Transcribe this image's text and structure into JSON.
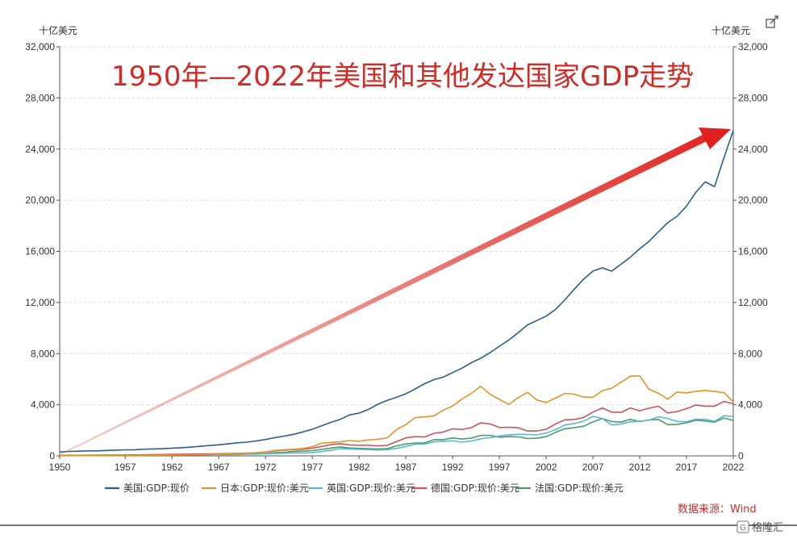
{
  "chart_data": {
    "type": "line",
    "title": "1950年—2022年美国和其他发达国家GDP走势",
    "ylabel_left": "十亿美元",
    "ylabel_right": "十亿美元",
    "xlim": [
      1950,
      2022
    ],
    "ylim": [
      0,
      32000
    ],
    "x_ticks": [
      "1950",
      "1957",
      "1962",
      "1967",
      "1972",
      "1977",
      "1982",
      "1987",
      "1992",
      "1997",
      "2002",
      "2007",
      "2012",
      "2017",
      "2022"
    ],
    "y_ticks": [
      "0",
      "4,000",
      "8,000",
      "12,000",
      "16,000",
      "20,000",
      "24,000",
      "28,000",
      "32,000"
    ],
    "grid": true,
    "legend_position": "bottom",
    "source": "数据来源：Wind",
    "x": [
      1950,
      1951,
      1952,
      1953,
      1954,
      1955,
      1956,
      1957,
      1958,
      1959,
      1960,
      1961,
      1962,
      1963,
      1964,
      1965,
      1966,
      1967,
      1968,
      1969,
      1970,
      1971,
      1972,
      1973,
      1974,
      1975,
      1976,
      1977,
      1978,
      1979,
      1980,
      1981,
      1982,
      1983,
      1984,
      1985,
      1986,
      1987,
      1988,
      1989,
      1990,
      1991,
      1992,
      1993,
      1994,
      1995,
      1996,
      1997,
      1998,
      1999,
      2000,
      2001,
      2002,
      2003,
      2004,
      2005,
      2006,
      2007,
      2008,
      2009,
      2010,
      2011,
      2012,
      2013,
      2014,
      2015,
      2016,
      2017,
      2018,
      2019,
      2020,
      2021,
      2022
    ],
    "series": [
      {
        "name": "美国:GDP:现价",
        "color": "#2a5f8a",
        "values": [
          300,
          348,
          368,
          389,
          391,
          426,
          450,
          474,
          482,
          522,
          543,
          563,
          605,
          638,
          686,
          744,
          815,
          862,
          943,
          1020,
          1073,
          1165,
          1280,
          1425,
          1545,
          1685,
          1873,
          2082,
          2352,
          2627,
          2857,
          3207,
          3343,
          3634,
          4037,
          4339,
          4580,
          4855,
          5236,
          5642,
          5963,
          6158,
          6520,
          6859,
          7287,
          7640,
          8073,
          8578,
          9063,
          9631,
          10251,
          10582,
          10936,
          11458,
          12214,
          13037,
          13815,
          14452,
          14713,
          14449,
          14992,
          15543,
          16197,
          16785,
          17527,
          18238,
          18745,
          19543,
          20612,
          21433,
          21061,
          23315,
          25464
        ]
      },
      {
        "name": "日本:GDP:现价:美元",
        "color": "#e0952a",
        "values": [
          11,
          14,
          17,
          19,
          21,
          24,
          27,
          30,
          32,
          36,
          44,
          53,
          60,
          69,
          81,
          91,
          105,
          123,
          146,
          172,
          212,
          240,
          318,
          432,
          480,
          520,
          580,
          720,
          1000,
          1050,
          1100,
          1200,
          1140,
          1250,
          1300,
          1400,
          2050,
          2450,
          3000,
          3050,
          3130,
          3580,
          3900,
          4450,
          4900,
          5450,
          4830,
          4420,
          4030,
          4560,
          4970,
          4370,
          4180,
          4520,
          4890,
          4830,
          4600,
          4580,
          5100,
          5290,
          5760,
          6230,
          6270,
          5210,
          4900,
          4440,
          5000,
          4930,
          5040,
          5120,
          5040,
          4940,
          4230
        ]
      },
      {
        "name": "英国:GDP:现价:美元",
        "color": "#5bb8c8",
        "values": [
          40,
          44,
          46,
          49,
          52,
          56,
          60,
          64,
          66,
          70,
          73,
          78,
          82,
          86,
          94,
          100,
          106,
          110,
          104,
          109,
          125,
          142,
          163,
          187,
          202,
          238,
          230,
          260,
          336,
          438,
          565,
          540,
          515,
          490,
          460,
          490,
          590,
          740,
          910,
          930,
          1090,
          1140,
          1180,
          1070,
          1160,
          1340,
          1420,
          1560,
          1650,
          1690,
          1670,
          1650,
          1790,
          2060,
          2420,
          2540,
          2710,
          3090,
          2930,
          2420,
          2490,
          2660,
          2710,
          2790,
          3060,
          2930,
          2690,
          2680,
          2870,
          2860,
          2700,
          3140,
          3090
        ]
      },
      {
        "name": "德国:GDP:现价:美元",
        "color": "#c9555d",
        "values": [
          30,
          36,
          40,
          45,
          50,
          56,
          62,
          68,
          73,
          79,
          100,
          110,
          120,
          130,
          140,
          150,
          160,
          165,
          175,
          195,
          215,
          250,
          300,
          390,
          440,
          490,
          520,
          600,
          740,
          880,
          950,
          860,
          830,
          830,
          790,
          820,
          1120,
          1410,
          1510,
          1480,
          1770,
          1870,
          2120,
          2070,
          2210,
          2590,
          2500,
          2220,
          2240,
          2200,
          1950,
          1950,
          2080,
          2500,
          2820,
          2850,
          3000,
          3430,
          3750,
          3420,
          3400,
          3750,
          3530,
          3730,
          3890,
          3360,
          3470,
          3690,
          3980,
          3890,
          3890,
          4260,
          4080
        ]
      },
      {
        "name": "法国:GDP:现价:美元",
        "color": "#4a9a6a",
        "values": [
          30,
          33,
          35,
          38,
          40,
          43,
          46,
          48,
          52,
          55,
          62,
          67,
          75,
          85,
          94,
          102,
          110,
          118,
          130,
          140,
          150,
          165,
          190,
          250,
          270,
          360,
          370,
          410,
          500,
          610,
          700,
          620,
          590,
          570,
          540,
          560,
          780,
          930,
          1010,
          1010,
          1270,
          1270,
          1400,
          1320,
          1390,
          1600,
          1610,
          1460,
          1510,
          1490,
          1360,
          1380,
          1500,
          1840,
          2120,
          2200,
          2320,
          2660,
          2920,
          2690,
          2640,
          2860,
          2680,
          2810,
          2850,
          2440,
          2470,
          2590,
          2790,
          2730,
          2640,
          2960,
          2780
        ]
      }
    ]
  },
  "watermark": "格隆汇",
  "watermark_icon": "share-icon"
}
